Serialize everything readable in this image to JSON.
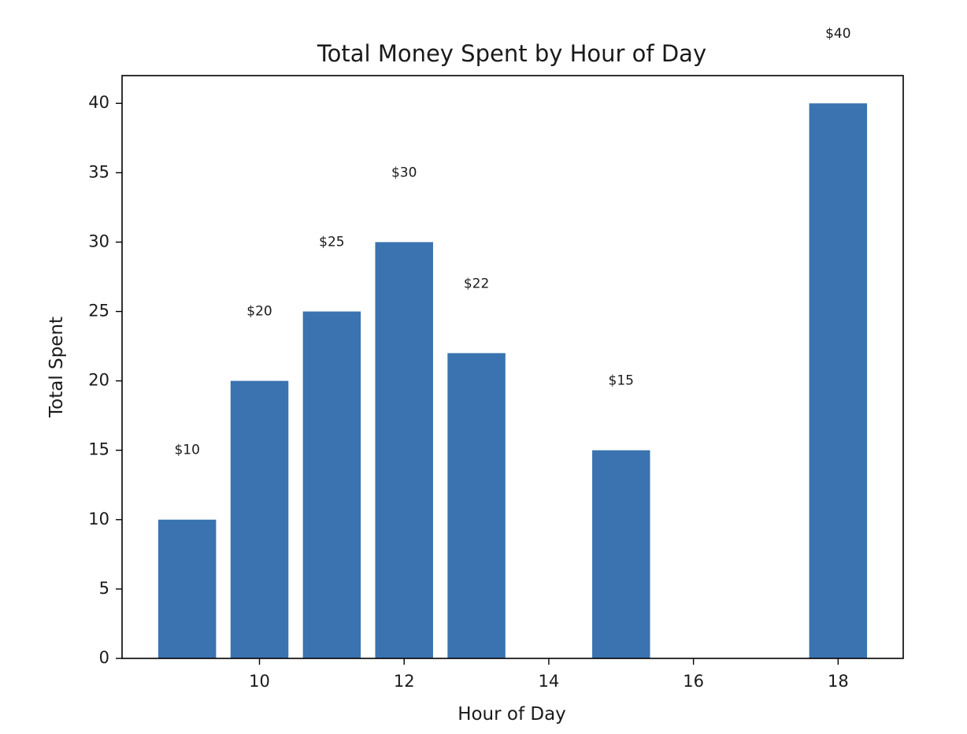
{
  "chart_data": {
    "type": "bar",
    "title": "Total Money Spent by Hour of Day",
    "xlabel": "Hour of Day",
    "ylabel": "Total Spent",
    "x": [
      9,
      10,
      11,
      12,
      13,
      15,
      18
    ],
    "values": [
      10,
      20,
      25,
      30,
      22,
      15,
      40
    ],
    "data_labels": [
      "$10",
      "$20",
      "$25",
      "$30",
      "$22",
      "$15",
      "$40"
    ],
    "xlim": [
      8.1,
      18.9
    ],
    "ylim": [
      0,
      42
    ],
    "xticks": [
      10,
      12,
      14,
      16,
      18
    ],
    "yticks": [
      0,
      5,
      10,
      15,
      20,
      25,
      30,
      35,
      40
    ],
    "bar_width": 0.8,
    "label_offset": 5,
    "grid": false,
    "bar_color": "#3a73b0"
  }
}
